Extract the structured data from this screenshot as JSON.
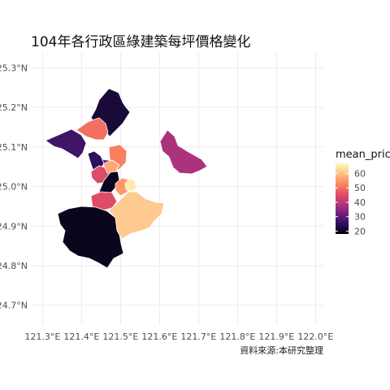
{
  "title": "104年各行政區綠建築每坪價格變化",
  "caption": "資料來源:本研究整理",
  "legend": {
    "title": "mean_pric",
    "ticks": [
      "60",
      "50",
      "40",
      "30",
      "20"
    ],
    "tick_values": [
      60,
      50,
      40,
      30,
      20
    ],
    "range": [
      18,
      67
    ],
    "colors": [
      "#000004",
      "#2b115e",
      "#721f81",
      "#b5367a",
      "#e55064",
      "#fb8861",
      "#fec287",
      "#fcfdbf"
    ]
  },
  "axes": {
    "x_ticks": [
      "121.3°E",
      "121.4°E",
      "121.5°E",
      "121.6°E",
      "121.7°E",
      "121.8°E",
      "121.9°E",
      "122.0°E"
    ],
    "x_values": [
      121.3,
      121.4,
      121.5,
      121.6,
      121.7,
      121.8,
      121.9,
      122.0
    ],
    "y_ticks": [
      "25.3°N",
      "25.2°N",
      "25.1°N",
      "25.0°N",
      "24.9°N",
      "24.8°N",
      "24.7°N"
    ],
    "y_values": [
      25.3,
      25.2,
      25.1,
      25.0,
      24.9,
      24.8,
      24.7
    ],
    "xlim": [
      121.27,
      122.02
    ],
    "ylim": [
      24.65,
      25.34
    ]
  },
  "districts": [
    {
      "id": "north-coast",
      "mean_price": 22
    },
    {
      "id": "northwest-peninsula",
      "mean_price": 27
    },
    {
      "id": "north-mid",
      "mean_price": 50
    },
    {
      "id": "riverside-west",
      "mean_price": 25
    },
    {
      "id": "central-small-north",
      "mean_price": 33
    },
    {
      "id": "central-east",
      "mean_price": 52
    },
    {
      "id": "central-west",
      "mean_price": 45
    },
    {
      "id": "central-south",
      "mean_price": 57
    },
    {
      "id": "river-strip",
      "mean_price": 20
    },
    {
      "id": "south-central",
      "mean_price": 55
    },
    {
      "id": "west-mid",
      "mean_price": 45
    },
    {
      "id": "southwest-large",
      "mean_price": 20
    },
    {
      "id": "southeast-large",
      "mean_price": 61
    },
    {
      "id": "central-peak",
      "mean_price": 65
    },
    {
      "id": "east-isolated",
      "mean_price": 38
    }
  ]
}
